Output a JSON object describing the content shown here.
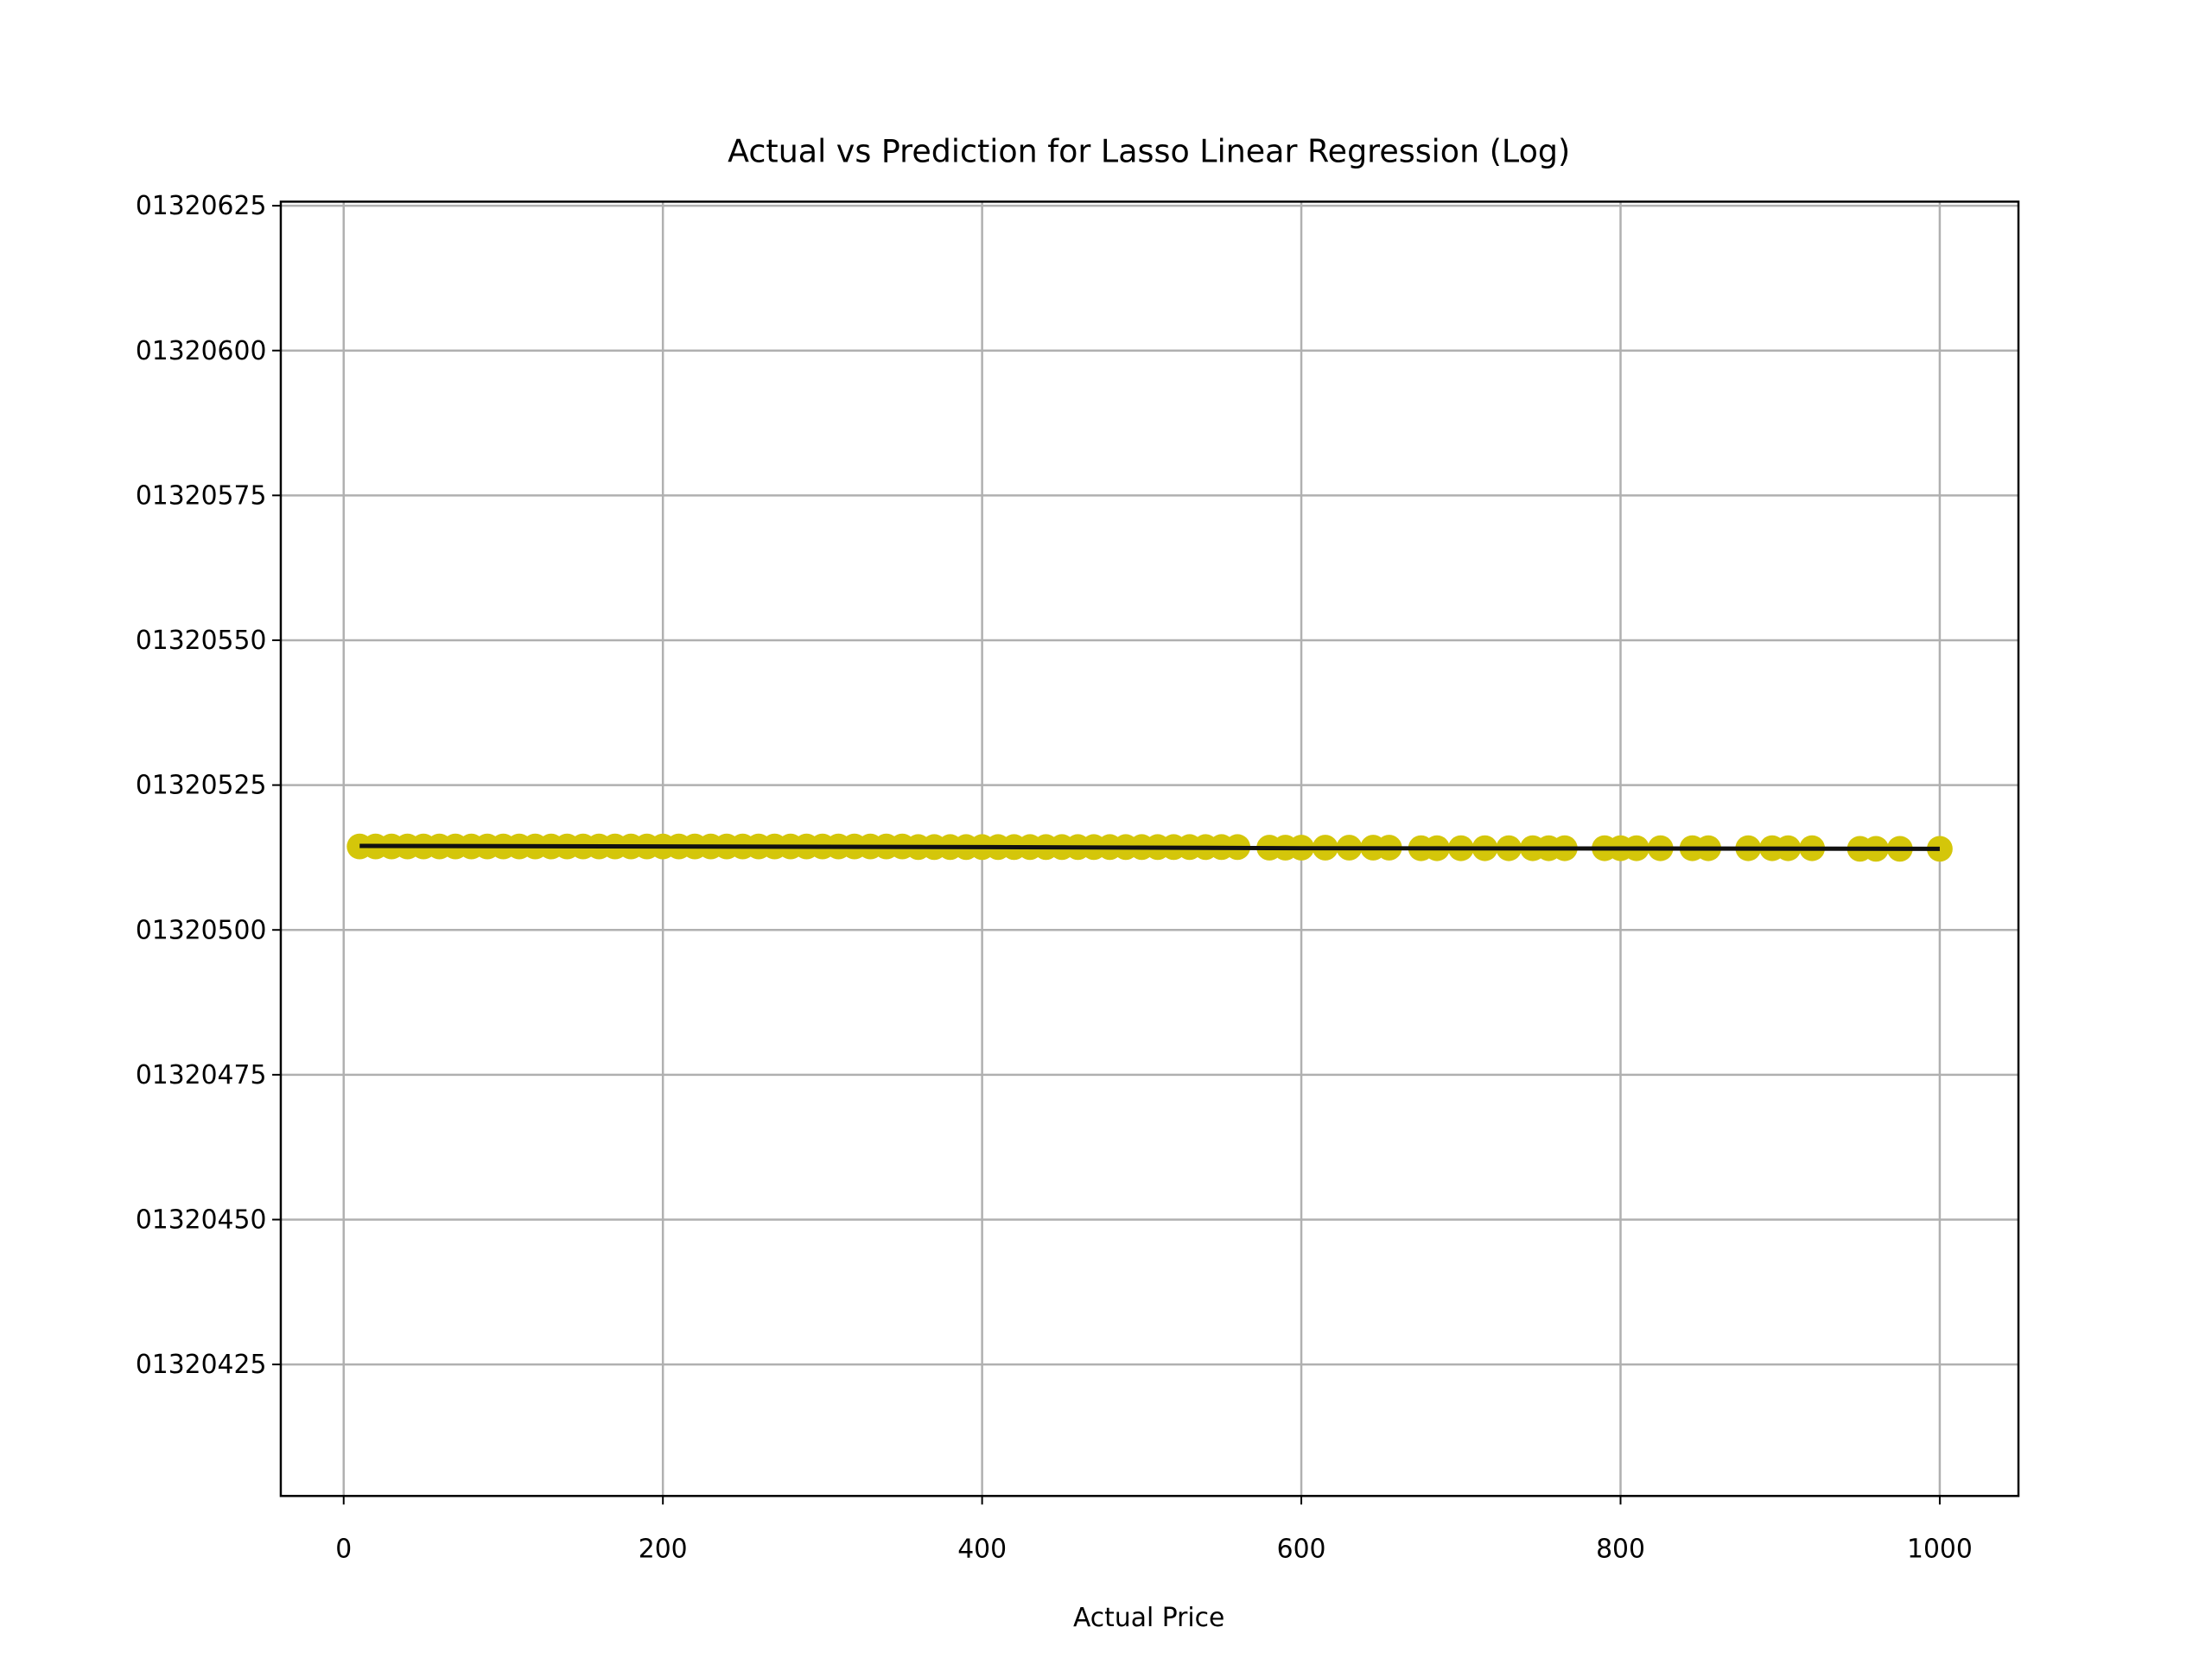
{
  "chart_data": {
    "type": "scatter",
    "title": "Actual vs Prediction for Lasso Linear Regression (Log)",
    "x_label": "Actual Price",
    "xlim": [
      -39.4,
      1049.3
    ],
    "xticks": [
      0,
      200,
      400,
      600,
      800,
      1000
    ],
    "ylim": [
      1320402.3,
      1320625.7
    ],
    "yticks": [
      {
        "value": 1320425,
        "label": "01320425"
      },
      {
        "value": 1320450,
        "label": "01320450"
      },
      {
        "value": 1320475,
        "label": "01320475"
      },
      {
        "value": 1320500,
        "label": "01320500"
      },
      {
        "value": 1320525,
        "label": "01320525"
      },
      {
        "value": 1320550,
        "label": "01320550"
      },
      {
        "value": 1320575,
        "label": "01320575"
      },
      {
        "value": 1320600,
        "label": "01320600"
      },
      {
        "value": 1320625,
        "label": "01320625"
      }
    ],
    "grid": true,
    "series": [
      {
        "kind": "scatter",
        "color": "#d4c60a",
        "x": [
          10,
          20,
          30,
          40,
          50,
          60,
          70,
          80,
          90,
          100,
          110,
          120,
          130,
          140,
          150,
          160,
          170,
          180,
          190,
          200,
          210,
          220,
          230,
          240,
          250,
          260,
          270,
          280,
          290,
          300,
          310,
          320,
          330,
          340,
          350,
          360,
          370,
          380,
          390,
          400,
          410,
          420,
          430,
          440,
          450,
          460,
          470,
          480,
          490,
          500,
          510,
          520,
          530,
          540,
          550,
          560,
          580,
          590,
          600,
          615,
          630,
          645,
          655,
          675,
          685,
          700,
          715,
          730,
          745,
          755,
          765,
          790,
          800,
          810,
          825,
          845,
          855,
          880,
          895,
          905,
          920,
          950,
          960,
          975,
          1000
        ],
        "values": [
          1320514.4,
          1320514.4,
          1320514.4,
          1320514.4,
          1320514.4,
          1320514.4,
          1320514.4,
          1320514.4,
          1320514.4,
          1320514.4,
          1320514.4,
          1320514.4,
          1320514.4,
          1320514.4,
          1320514.4,
          1320514.4,
          1320514.4,
          1320514.4,
          1320514.4,
          1320514.4,
          1320514.4,
          1320514.4,
          1320514.4,
          1320514.4,
          1320514.4,
          1320514.4,
          1320514.4,
          1320514.4,
          1320514.4,
          1320514.4,
          1320514.4,
          1320514.4,
          1320514.4,
          1320514.4,
          1320514.4,
          1320514.3,
          1320514.3,
          1320514.3,
          1320514.3,
          1320514.3,
          1320514.3,
          1320514.3,
          1320514.3,
          1320514.3,
          1320514.3,
          1320514.3,
          1320514.3,
          1320514.3,
          1320514.3,
          1320514.3,
          1320514.3,
          1320514.3,
          1320514.3,
          1320514.3,
          1320514.3,
          1320514.3,
          1320514.2,
          1320514.2,
          1320514.2,
          1320514.2,
          1320514.2,
          1320514.2,
          1320514.2,
          1320514.1,
          1320514.1,
          1320514.1,
          1320514.1,
          1320514.1,
          1320514.1,
          1320514.1,
          1320514.1,
          1320514.1,
          1320514.1,
          1320514.1,
          1320514.1,
          1320514.1,
          1320514.1,
          1320514.1,
          1320514.1,
          1320514.1,
          1320514.1,
          1320514.0,
          1320514.0,
          1320514.0,
          1320514.0
        ]
      },
      {
        "kind": "line",
        "color": "#111111",
        "x": [
          10,
          400,
          600,
          1000
        ],
        "values": [
          1320514.5,
          1320514.3,
          1320514.1,
          1320514.0
        ]
      }
    ]
  }
}
